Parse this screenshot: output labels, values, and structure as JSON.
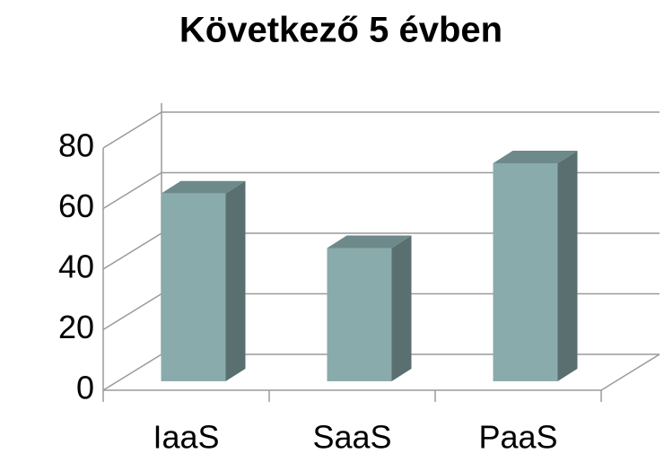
{
  "chart_data": {
    "type": "bar3d",
    "title": "Következő 5 évben",
    "categories": [
      "IaaS",
      "SaaS",
      "PaaS"
    ],
    "values": [
      62,
      44,
      72
    ],
    "color": "#8aabab",
    "ylim": [
      0,
      80
    ],
    "yticks": [
      0,
      20,
      40,
      60,
      80
    ],
    "grid": true
  }
}
